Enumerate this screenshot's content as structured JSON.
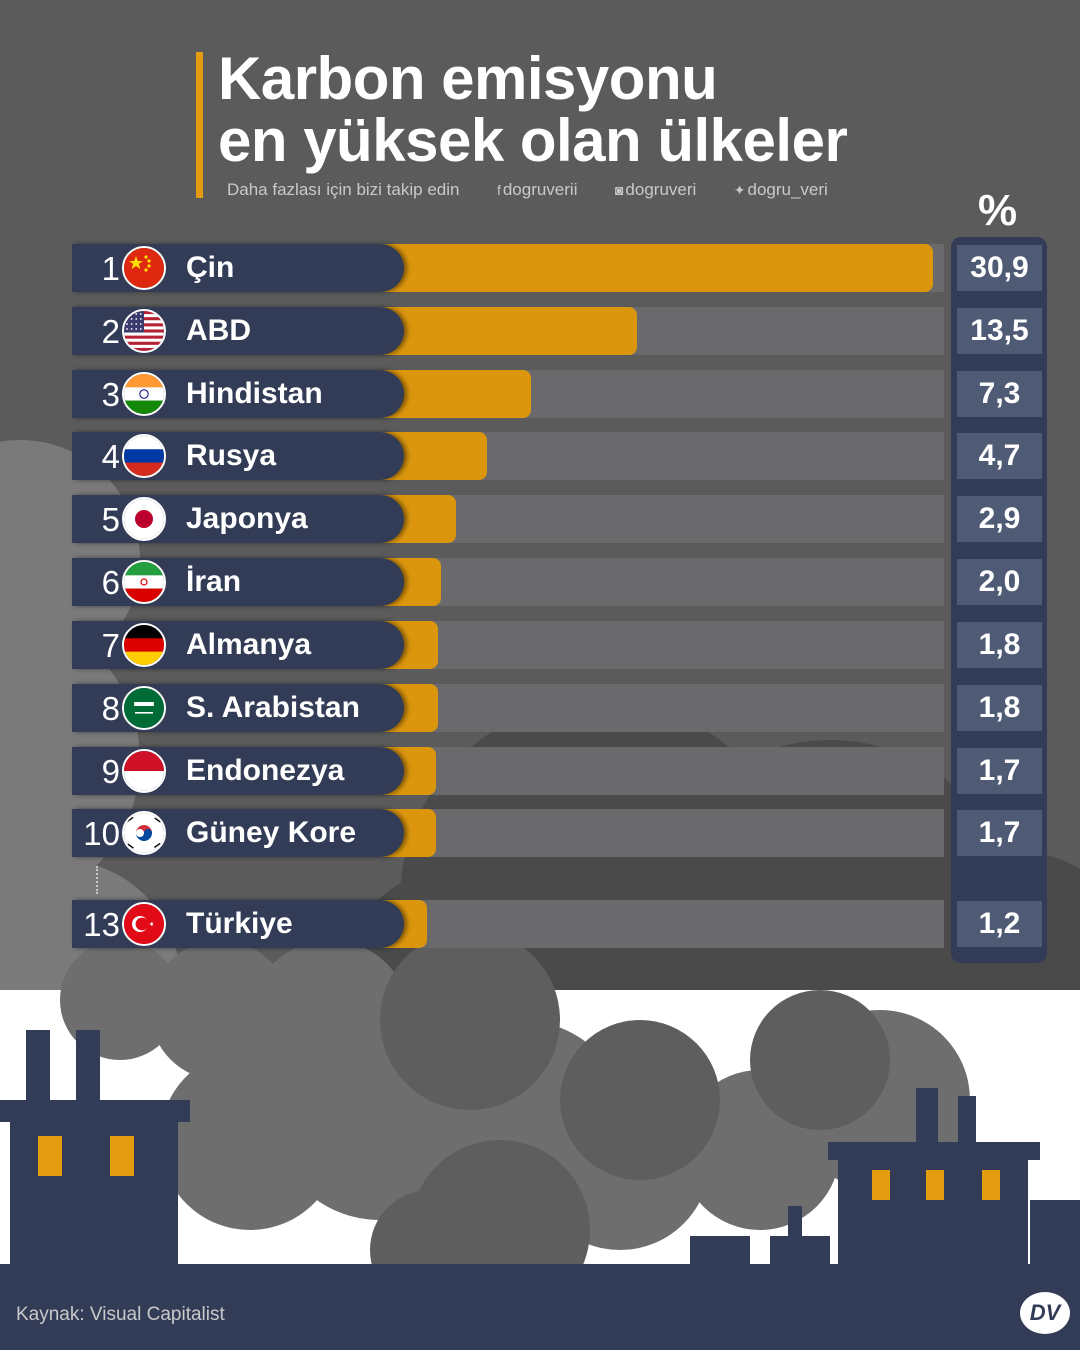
{
  "title_lines": [
    "Karbon emisyonu",
    "en yüksek olan ülkeler"
  ],
  "social": {
    "follow_text": "Daha fazlası için bizi takip edin",
    "facebook": "dogruverii",
    "instagram": "dogruveri",
    "twitter": "dogru_veri"
  },
  "source": "Kaynak: Visual Capitalist",
  "logo": "DV",
  "colors": {
    "background": "#5b5b5b",
    "bar": "#db960d",
    "navy": "#323c56",
    "track": "#6a6a6c",
    "title_accent": "#e39c10"
  },
  "chart_data": {
    "type": "bar",
    "orientation": "horizontal",
    "value_header": "%",
    "categories": [
      "Çin",
      "ABD",
      "Hindistan",
      "Rusya",
      "Japonya",
      "İran",
      "Almanya",
      "S. Arabistan",
      "Endonezya",
      "Güney Kore",
      "Türkiye"
    ],
    "ranks": [
      "1",
      "2",
      "3",
      "4",
      "5",
      "6",
      "7",
      "8",
      "9",
      "10",
      "13"
    ],
    "values": [
      30.9,
      13.5,
      7.3,
      4.7,
      2.9,
      2.0,
      1.8,
      1.8,
      1.7,
      1.7,
      1.2
    ],
    "value_labels": [
      "30,9",
      "13,5",
      "7,3",
      "4,7",
      "2,9",
      "2,0",
      "1,8",
      "1,8",
      "1,7",
      "1,7",
      "1,2"
    ],
    "flags": [
      "china-flag-icon",
      "usa-flag-icon",
      "india-flag-icon",
      "russia-flag-icon",
      "japan-flag-icon",
      "iran-flag-icon",
      "germany-flag-icon",
      "saudi-arabia-flag-icon",
      "indonesia-flag-icon",
      "south-korea-flag-icon",
      "turkey-flag-icon"
    ]
  }
}
